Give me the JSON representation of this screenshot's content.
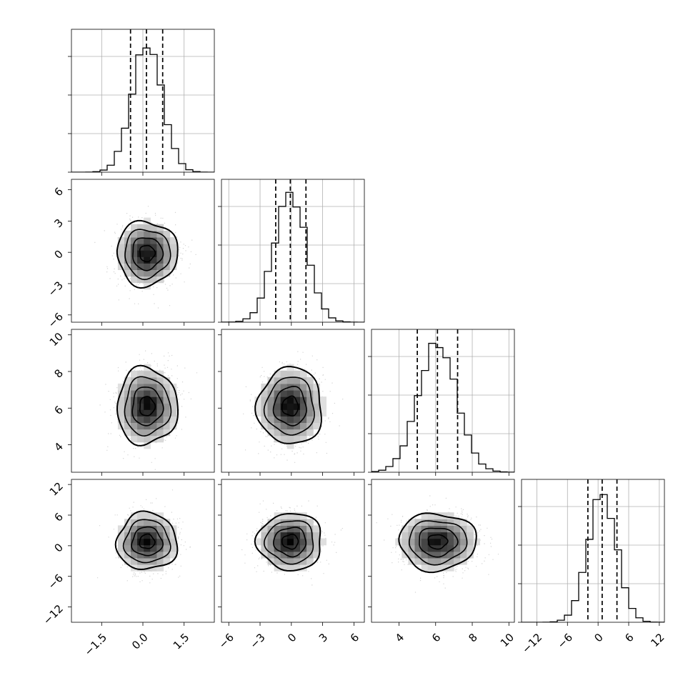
{
  "chart_data": {
    "type": "corner",
    "params": [
      {
        "lim": [
          -2.6,
          2.6
        ],
        "ticks": [
          -1.5,
          0.0,
          1.5
        ],
        "tick_labels": [
          "−1.5",
          "0.0",
          "1.5"
        ],
        "mean": 0.15,
        "sd": 0.55,
        "quantiles": [
          -0.45,
          0.13,
          0.72
        ]
      },
      {
        "lim": [
          -6.7,
          7.0
        ],
        "ticks": [
          -6,
          -3,
          0,
          3,
          6
        ],
        "tick_labels": [
          "−6",
          "−3",
          "0",
          "3",
          "6"
        ],
        "mean": -0.1,
        "sd": 1.55,
        "quantiles": [
          -1.5,
          -0.1,
          1.4
        ]
      },
      {
        "lim": [
          2.5,
          10.3
        ],
        "ticks": [
          4,
          6,
          8,
          10
        ],
        "tick_labels": [
          "4",
          "6",
          "8",
          "10"
        ],
        "mean": 6.1,
        "sd": 1.05,
        "quantiles": [
          5.0,
          6.1,
          7.2
        ]
      },
      {
        "lim": [
          -15.0,
          13.0
        ],
        "ticks": [
          -12,
          -6,
          0,
          6,
          12
        ],
        "tick_labels": [
          "−12",
          "−6",
          "0",
          "6",
          "12"
        ],
        "mean": 0.8,
        "sd": 2.8,
        "quantiles": [
          -2.0,
          0.8,
          3.7
        ]
      }
    ],
    "contour_levels_sigma": [
      0.5,
      1.0,
      1.5,
      2.0
    ],
    "grid": true,
    "quantile_style": "dashed",
    "colors": {
      "ink": "#000000",
      "grid": "#b0b0b0",
      "points": "#9e9e9e"
    }
  }
}
